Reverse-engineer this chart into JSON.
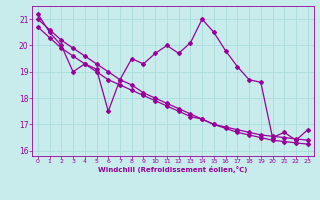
{
  "xlabel": "Windchill (Refroidissement éolien,°C)",
  "background_color": "#c8ecec",
  "line_color": "#990099",
  "x": [
    0,
    1,
    2,
    3,
    4,
    5,
    6,
    7,
    8,
    9,
    10,
    11,
    12,
    13,
    14,
    15,
    16,
    17,
    18,
    19,
    20,
    21,
    22,
    23
  ],
  "wiggly_series": [
    21.2,
    20.5,
    20.0,
    19.0,
    19.3,
    19.1,
    17.5,
    18.7,
    19.5,
    19.3,
    19.7,
    20.0,
    19.7,
    20.1,
    21.0,
    20.5,
    19.8,
    19.2,
    18.7,
    18.6,
    16.5,
    16.7,
    16.4,
    16.8
  ],
  "straight1": [
    21.0,
    20.6,
    20.2,
    19.9,
    19.6,
    19.3,
    19.0,
    18.7,
    18.5,
    18.2,
    18.0,
    17.8,
    17.6,
    17.4,
    17.2,
    17.0,
    16.9,
    16.8,
    16.7,
    16.6,
    16.55,
    16.5,
    16.45,
    16.4
  ],
  "straight2": [
    20.7,
    20.3,
    19.9,
    19.6,
    19.3,
    19.0,
    18.7,
    18.5,
    18.3,
    18.1,
    17.9,
    17.7,
    17.5,
    17.3,
    17.2,
    17.0,
    16.85,
    16.7,
    16.6,
    16.5,
    16.4,
    16.35,
    16.3,
    16.25
  ],
  "xlim": [
    -0.5,
    23.5
  ],
  "ylim": [
    15.8,
    21.5
  ],
  "yticks": [
    16,
    17,
    18,
    19,
    20,
    21
  ],
  "xticks": [
    0,
    1,
    2,
    3,
    4,
    5,
    6,
    7,
    8,
    9,
    10,
    11,
    12,
    13,
    14,
    15,
    16,
    17,
    18,
    19,
    20,
    21,
    22,
    23
  ],
  "grid_color": "#aadddd",
  "marker": "D",
  "marker_size": 2,
  "line_width": 0.9
}
